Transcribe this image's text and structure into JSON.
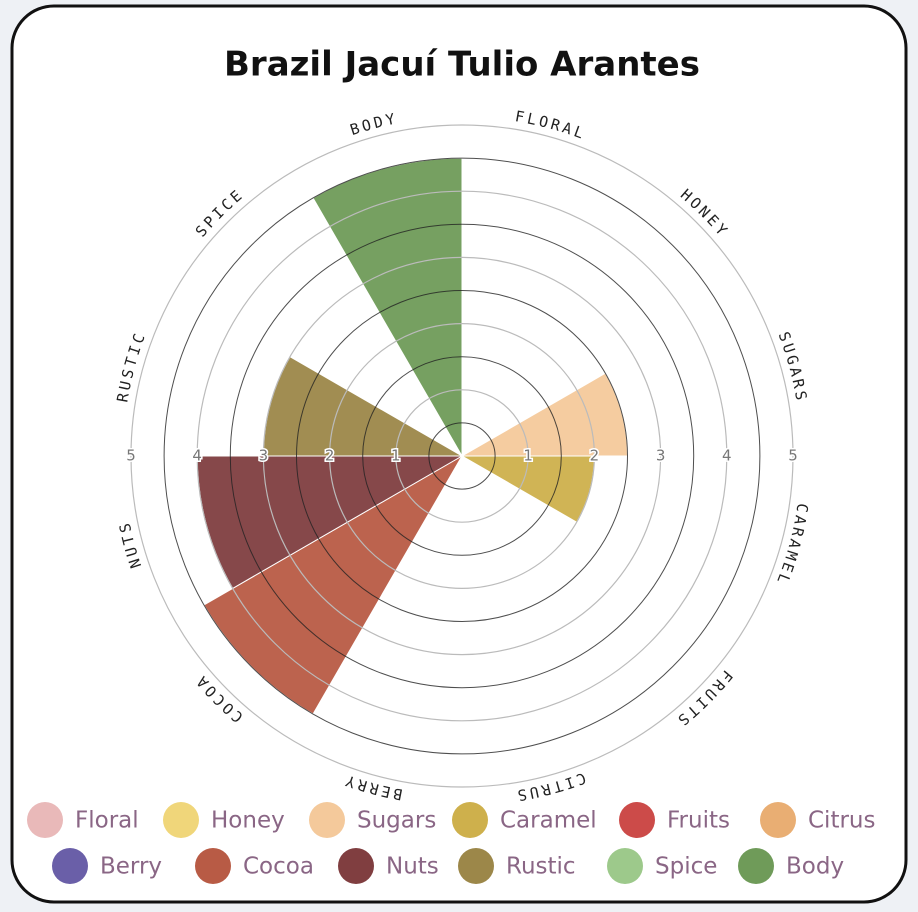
{
  "chart_data": {
    "type": "polar-area",
    "title": "Brazil Jacuí Tulio Arantes",
    "categories": [
      "FLORAL",
      "HONEY",
      "SUGARS",
      "CARAMEL",
      "FRUITS",
      "CITRUS",
      "BERRY",
      "COCOA",
      "NUTS",
      "RUSTIC",
      "SPICE",
      "BODY"
    ],
    "values": [
      0,
      0,
      2.5,
      2,
      0,
      0,
      0,
      4.5,
      4,
      3,
      0,
      4.5
    ],
    "colors": [
      "#e9b9b9",
      "#f0d67a",
      "#f4c99b",
      "#ceb04c",
      "#cc4b49",
      "#e9ae73",
      "#6a5fa8",
      "#b85b45",
      "#803e40",
      "#9c8749",
      "#9dc98b",
      "#6f9b59"
    ],
    "legend_labels": [
      "Floral",
      "Honey",
      "Sugars",
      "Caramel",
      "Fruits",
      "Citrus",
      "Berry",
      "Cocoa",
      "Nuts",
      "Rustic",
      "Spice",
      "Body"
    ],
    "rlim": [
      0,
      5
    ],
    "rticks": [
      1,
      2,
      3,
      4,
      5
    ]
  }
}
